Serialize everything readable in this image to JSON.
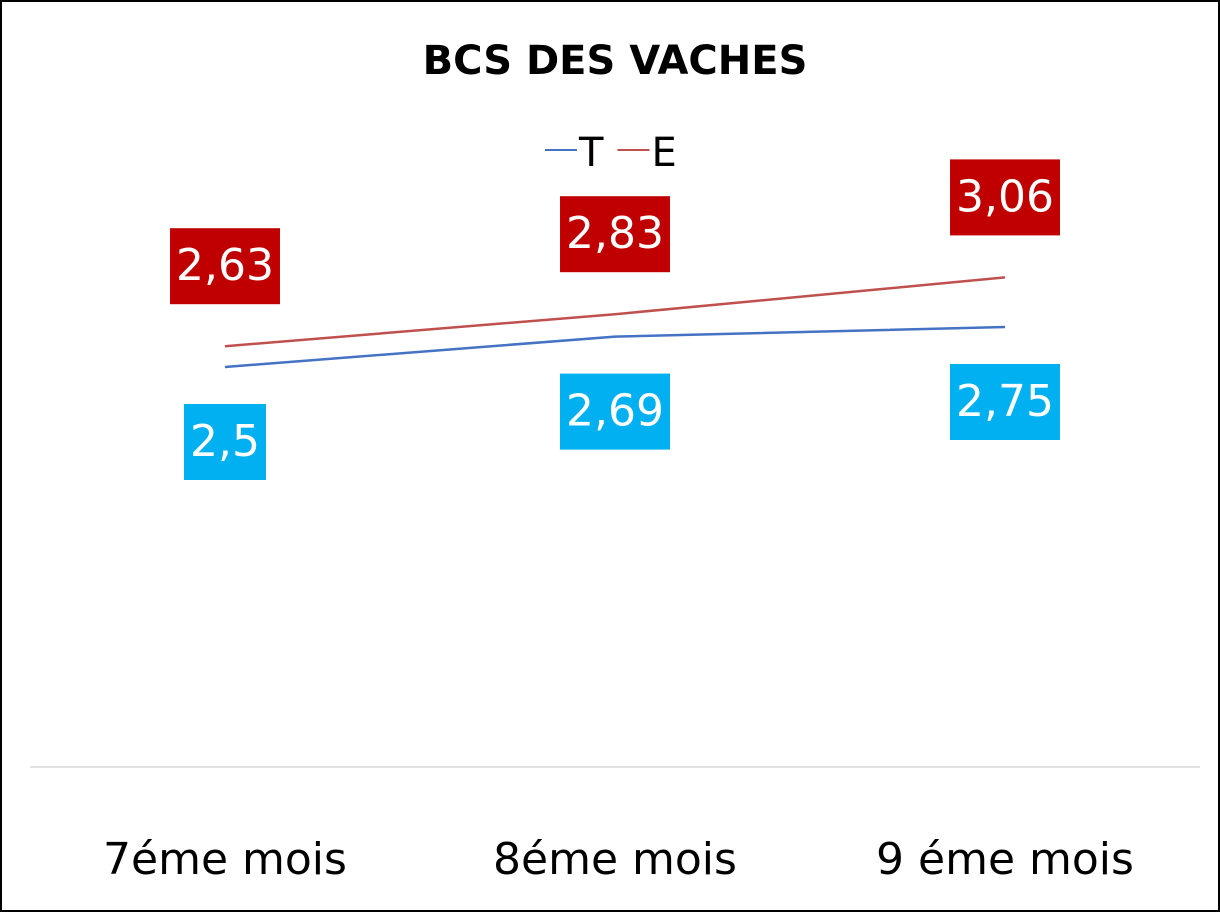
{
  "chart_data": {
    "type": "line",
    "title": "BCS DES VACHES",
    "categories": [
      "7éme mois",
      "8éme mois",
      "9 éme mois"
    ],
    "series": [
      {
        "name": "T",
        "color": "#4472c4",
        "label_color": "#00b0f0",
        "values": [
          2.5,
          2.69,
          2.75
        ],
        "value_labels": [
          "2,5",
          "2,69",
          "2,75"
        ]
      },
      {
        "name": "E",
        "color": "#c0504d",
        "label_color": "#c00000",
        "values": [
          2.63,
          2.83,
          3.06
        ],
        "value_labels": [
          "2,63",
          "2,83",
          "3,06"
        ]
      }
    ],
    "ylim": [
      0,
      3.5
    ],
    "legend": "top"
  }
}
